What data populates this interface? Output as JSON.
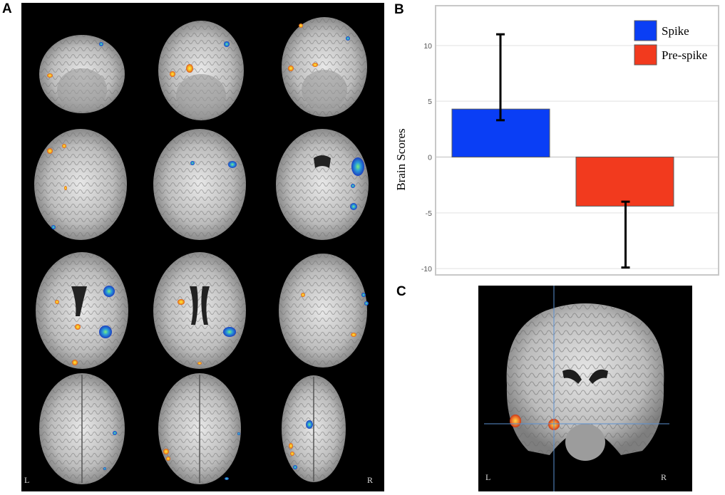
{
  "panels": {
    "a": {
      "letter": "A",
      "left_label": "L",
      "right_label": "R"
    },
    "b": {
      "letter": "B"
    },
    "c": {
      "letter": "C",
      "left_label": "L",
      "right_label": "R"
    }
  },
  "chart_data": {
    "type": "bar",
    "categories": [
      "Spike",
      "Pre-spike"
    ],
    "series": [
      {
        "name": "Spike",
        "value": 4.3,
        "error_low": 3.3,
        "error_high": 11.0,
        "color": "#0a3ef5"
      },
      {
        "name": "Pre-spike",
        "value": -4.4,
        "error_low": -9.9,
        "error_high": -4.0,
        "color": "#f23a1e"
      }
    ],
    "title": "",
    "xlabel": "",
    "ylabel": "Brain Scores",
    "ylim": [
      -10.5,
      13.5
    ],
    "yticks": [
      10,
      5,
      0,
      -5,
      -10
    ],
    "ytick_labels": [
      "10",
      "5",
      "0",
      "-5",
      "-10"
    ],
    "grid": true,
    "legend_position": "top-right"
  }
}
